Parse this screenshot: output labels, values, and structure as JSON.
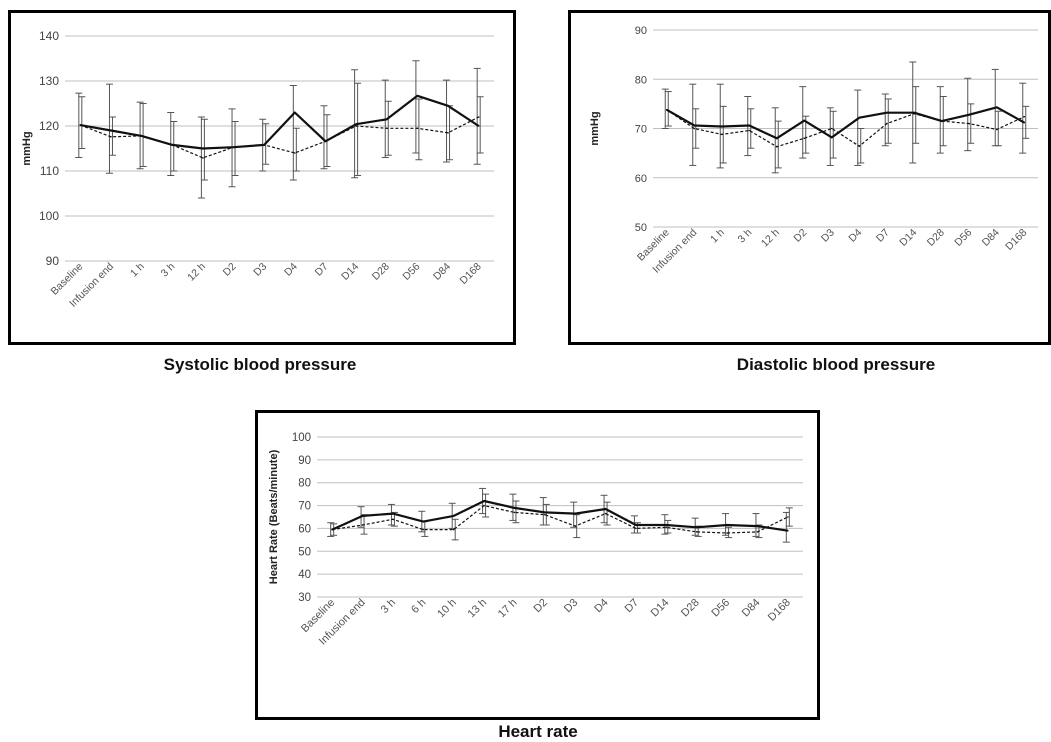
{
  "captions": {
    "systolic": "Systolic blood pressure",
    "diastolic": "Diastolic  blood pressure",
    "heart_rate": "Heart rate"
  },
  "chart_data": [
    {
      "type": "line",
      "title": "",
      "xlabel": "",
      "ylabel": "mmHg",
      "ylim": [
        90,
        140
      ],
      "yticks": [
        90,
        100,
        110,
        120,
        130,
        140
      ],
      "grid": true,
      "categories": [
        "Baseline",
        "Infusion end",
        "1 h",
        "3 h",
        "12 h",
        "D2",
        "D3",
        "D4",
        "D7",
        "D14",
        "D28",
        "D56",
        "D84",
        "D168"
      ],
      "series": [
        {
          "style": "solid",
          "values": [
            120.2,
            119.0,
            117.8,
            115.8,
            115.0,
            115.3,
            115.8,
            123.0,
            116.6,
            120.4,
            121.5,
            126.7,
            124.5,
            120.0
          ],
          "err_low": [
            113.0,
            109.5,
            110.5,
            109.0,
            104.0,
            106.5,
            110.0,
            108.0,
            110.5,
            108.5,
            113.0,
            114.0,
            112.0,
            111.5
          ],
          "err_high": [
            127.3,
            129.3,
            125.3,
            123.0,
            122.0,
            123.8,
            121.5,
            129.0,
            124.5,
            132.5,
            130.2,
            134.5,
            130.2,
            132.8
          ]
        },
        {
          "style": "dashed",
          "values": [
            120.2,
            117.6,
            117.8,
            115.8,
            112.9,
            115.3,
            115.8,
            114.0,
            116.6,
            120.0,
            119.5,
            119.5,
            118.5,
            122.0
          ],
          "err_low": [
            115.0,
            113.5,
            111.0,
            110.0,
            108.0,
            109.0,
            111.5,
            110.0,
            111.0,
            109.0,
            113.5,
            112.5,
            112.5,
            114.0
          ],
          "err_high": [
            126.5,
            122.0,
            125.0,
            121.0,
            121.5,
            121.0,
            120.5,
            119.5,
            122.5,
            129.5,
            125.5,
            126.0,
            124.5,
            126.5
          ]
        }
      ]
    },
    {
      "type": "line",
      "title": "",
      "xlabel": "",
      "ylabel": "mmHg",
      "ylim": [
        50,
        90
      ],
      "yticks": [
        50,
        60,
        70,
        80,
        90
      ],
      "grid": true,
      "categories": [
        "Baseline",
        "Infusion end",
        "1 h",
        "3 h",
        "12 h",
        "D2",
        "D3",
        "D4",
        "D7",
        "D14",
        "D28",
        "D56",
        "D84",
        "D168"
      ],
      "series": [
        {
          "style": "solid",
          "values": [
            73.8,
            70.6,
            70.4,
            70.6,
            68.0,
            71.6,
            68.2,
            72.2,
            73.2,
            73.2,
            71.5,
            72.8,
            74.3,
            71.2
          ],
          "err_low": [
            70.0,
            62.5,
            62.0,
            64.5,
            61.0,
            64.0,
            62.5,
            62.5,
            66.5,
            63.0,
            65.0,
            65.5,
            66.5,
            65.0
          ],
          "err_high": [
            78.0,
            79.0,
            79.0,
            76.5,
            74.2,
            78.5,
            74.2,
            77.8,
            77.0,
            83.5,
            78.5,
            80.2,
            82.0,
            79.2
          ]
        },
        {
          "style": "dashed",
          "values": [
            73.8,
            70.0,
            68.8,
            69.6,
            66.3,
            68.0,
            70.0,
            66.4,
            71.0,
            73.0,
            71.5,
            71.0,
            69.8,
            72.4
          ],
          "err_low": [
            70.5,
            66.0,
            63.0,
            66.0,
            62.0,
            65.0,
            64.0,
            63.0,
            67.0,
            67.0,
            66.5,
            67.0,
            66.5,
            68.0
          ],
          "err_high": [
            77.5,
            74.0,
            74.5,
            74.0,
            71.5,
            72.5,
            73.5,
            70.0,
            76.0,
            78.5,
            76.5,
            75.0,
            73.5,
            74.5
          ]
        }
      ]
    },
    {
      "type": "line",
      "title": "",
      "xlabel": "",
      "ylabel": "Heart Rate (Beats/minute)",
      "ylim": [
        30,
        100
      ],
      "yticks": [
        30,
        40,
        50,
        60,
        70,
        80,
        90,
        100
      ],
      "grid": true,
      "categories": [
        "Baseline",
        "Infusion end",
        "3 h",
        "6 h",
        "10 h",
        "13 h",
        "17 h",
        "D2",
        "D3",
        "D4",
        "D7",
        "D14",
        "D28",
        "D56",
        "D84",
        "D168"
      ],
      "series": [
        {
          "style": "solid",
          "values": [
            59.5,
            65.5,
            66.5,
            63.0,
            65.5,
            72.0,
            69.0,
            67.0,
            66.5,
            68.5,
            61.5,
            61.5,
            60.5,
            61.5,
            61.0,
            59.0
          ],
          "err_low": [
            56.5,
            60.5,
            61.5,
            58.5,
            60.0,
            66.5,
            63.5,
            61.5,
            60.5,
            62.5,
            58.0,
            57.5,
            57.0,
            57.0,
            56.5,
            54.0
          ],
          "err_high": [
            62.5,
            69.5,
            70.5,
            67.5,
            71.0,
            77.5,
            75.0,
            73.5,
            71.5,
            74.5,
            65.5,
            66.0,
            64.5,
            66.5,
            66.5,
            67.0
          ]
        },
        {
          "style": "dashed",
          "values": [
            59.5,
            61.5,
            64.0,
            59.5,
            59.5,
            70.0,
            67.0,
            66.0,
            61.0,
            66.5,
            60.0,
            60.5,
            58.5,
            58.0,
            58.5,
            65.0
          ],
          "err_low": [
            57.0,
            57.5,
            61.0,
            56.5,
            55.0,
            65.0,
            62.5,
            61.5,
            56.0,
            61.5,
            58.0,
            58.0,
            56.5,
            56.0,
            56.0,
            61.0
          ],
          "err_high": [
            62.0,
            66.0,
            67.0,
            63.0,
            64.0,
            75.0,
            72.0,
            70.5,
            66.0,
            71.5,
            62.5,
            63.5,
            61.0,
            60.5,
            61.5,
            69.0
          ]
        }
      ]
    }
  ]
}
